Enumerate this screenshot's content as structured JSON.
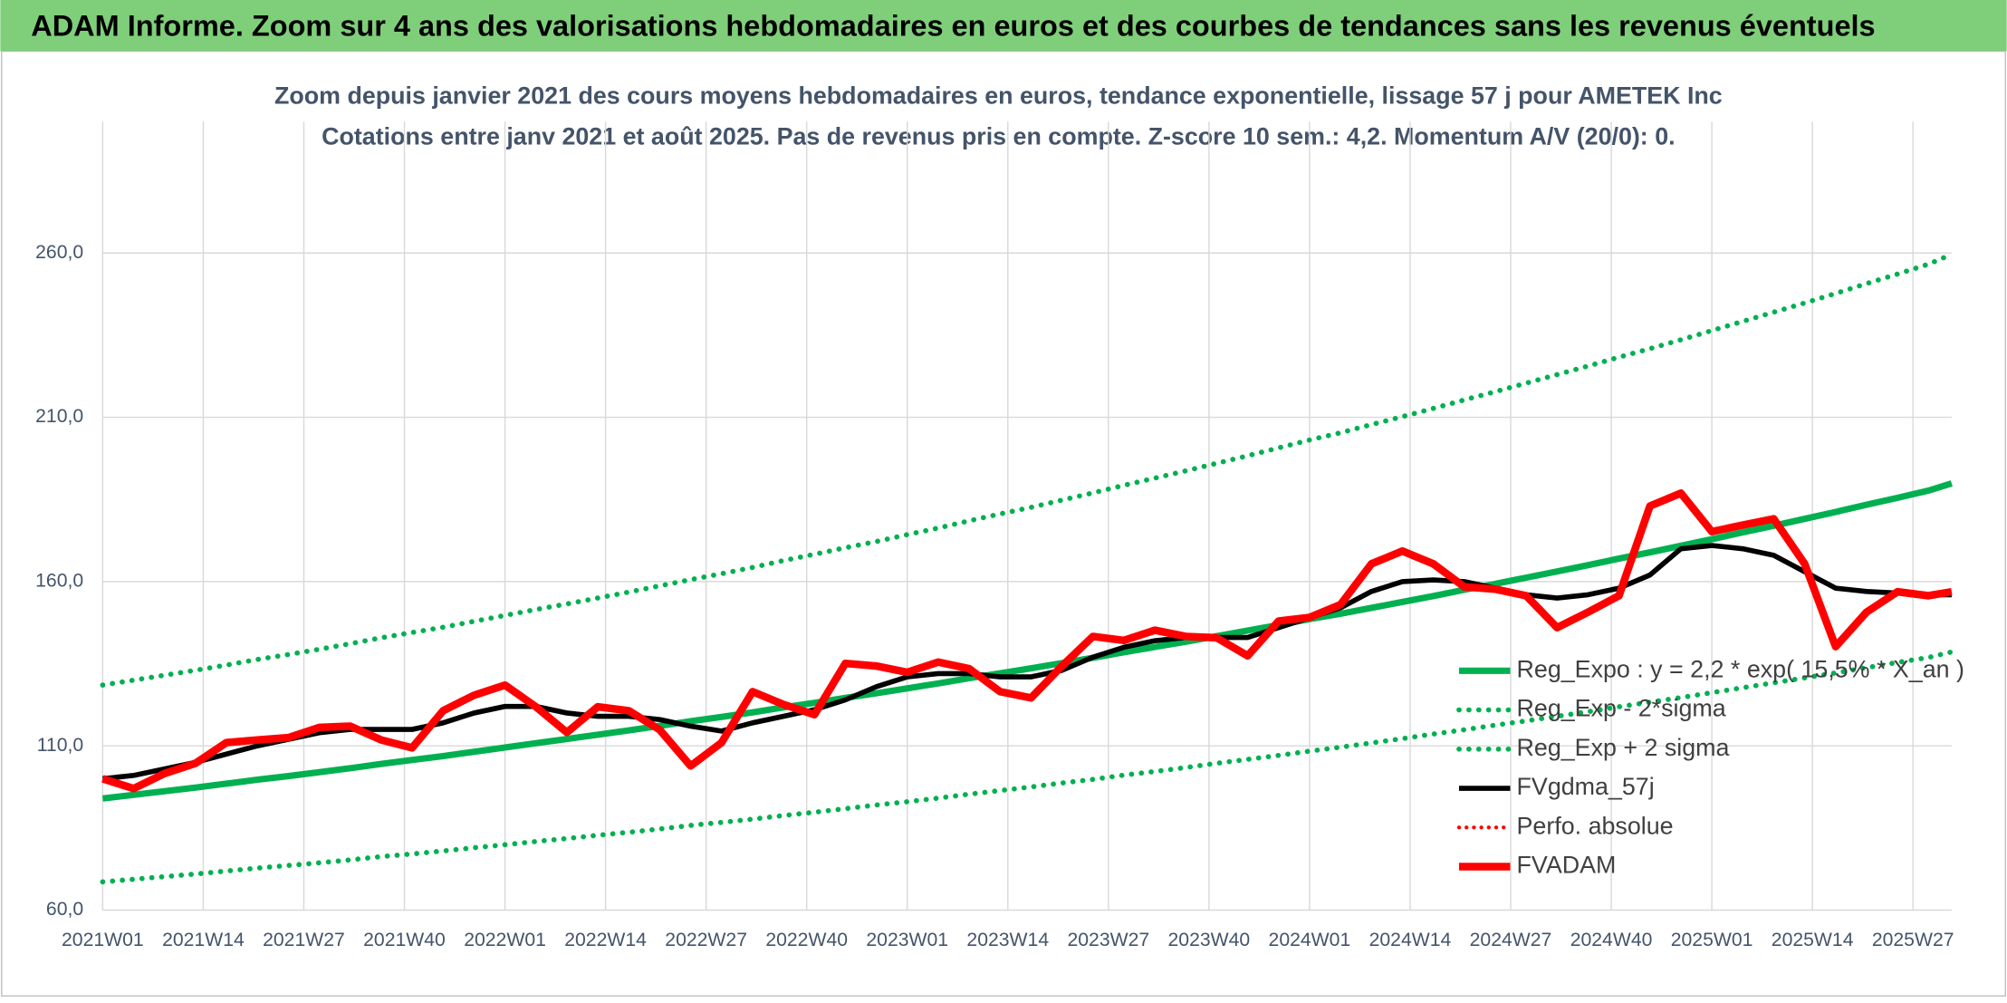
{
  "header": "ADAM Informe. Zoom sur 4 ans des valorisations hebdomadaires en euros et des courbes de tendances sans les revenus éventuels",
  "chart_data": {
    "type": "line",
    "subtitle": [
      "Zoom depuis janvier 2021 des cours moyens hebdomadaires en euros, tendance exponentielle, lissage 57 j pour AMETEK Inc",
      "Cotations entre janv 2021 et août 2025. Pas de revenus pris en compte. Z-score 10 sem.: 4,2. Momentum A/V (20/0): 0."
    ],
    "x": [
      0,
      4,
      8,
      12,
      16,
      20,
      24,
      28,
      32,
      36,
      40,
      44,
      48,
      52,
      56,
      60,
      64,
      68,
      72,
      76,
      80,
      84,
      88,
      92,
      96,
      100,
      104,
      108,
      112,
      116,
      120,
      124,
      128,
      132,
      136,
      140,
      144,
      148,
      152,
      156,
      160,
      164,
      168,
      172,
      176,
      180,
      184,
      188,
      192,
      196,
      200,
      204,
      208,
      212,
      216,
      220,
      224,
      228,
      232,
      236,
      239
    ],
    "xlim": [
      0,
      239
    ],
    "xticks": [
      {
        "value": 0,
        "label": "2021W01"
      },
      {
        "value": 13,
        "label": "2021W14"
      },
      {
        "value": 26,
        "label": "2021W27"
      },
      {
        "value": 39,
        "label": "2021W40"
      },
      {
        "value": 52,
        "label": "2022W01"
      },
      {
        "value": 65,
        "label": "2022W14"
      },
      {
        "value": 78,
        "label": "2022W27"
      },
      {
        "value": 91,
        "label": "2022W40"
      },
      {
        "value": 104,
        "label": "2023W01"
      },
      {
        "value": 117,
        "label": "2023W14"
      },
      {
        "value": 130,
        "label": "2023W27"
      },
      {
        "value": 143,
        "label": "2023W40"
      },
      {
        "value": 156,
        "label": "2024W01"
      },
      {
        "value": 169,
        "label": "2024W14"
      },
      {
        "value": 182,
        "label": "2024W27"
      },
      {
        "value": 195,
        "label": "2024W40"
      },
      {
        "value": 208,
        "label": "2025W01"
      },
      {
        "value": 221,
        "label": "2025W14"
      },
      {
        "value": 234,
        "label": "2025W27"
      }
    ],
    "ylim": [
      60,
      300
    ],
    "yticks": [
      {
        "value": 60,
        "label": "60,0"
      },
      {
        "value": 110,
        "label": "110,0"
      },
      {
        "value": 160,
        "label": "160,0"
      },
      {
        "value": 210,
        "label": "210,0"
      },
      {
        "value": 260,
        "label": "260,0"
      }
    ],
    "grid": true,
    "series": [
      {
        "name": "Reg_Expo : y = 2,2 * exp( 15,5% * X_an )",
        "color": "#00b050",
        "style": "solid",
        "width": 5,
        "values": [
          94.0,
          95.1,
          96.2,
          97.3,
          98.5,
          99.7,
          100.8,
          102.0,
          103.2,
          104.5,
          105.7,
          106.9,
          108.2,
          109.5,
          110.8,
          112.1,
          113.4,
          114.7,
          116.1,
          117.5,
          118.8,
          120.2,
          121.7,
          123.1,
          124.6,
          126.0,
          127.5,
          129.0,
          130.6,
          132.1,
          133.6,
          135.2,
          136.8,
          138.5,
          140.1,
          141.7,
          143.4,
          145.1,
          146.8,
          148.6,
          150.2,
          152.0,
          153.8,
          155.6,
          157.5,
          159.3,
          161.2,
          163.1,
          165.0,
          167.0,
          168.9,
          170.9,
          172.9,
          175.0,
          177.0,
          179.1,
          181.2,
          183.4,
          185.5,
          187.7,
          189.9
        ]
      },
      {
        "name": "Reg_Exp - 2*sigma",
        "color": "#00b050",
        "style": "dotted",
        "width": 4,
        "values": [
          68.6,
          69.4,
          70.2,
          71.0,
          71.9,
          72.8,
          73.6,
          74.4,
          75.3,
          76.3,
          77.1,
          78.0,
          79.0,
          79.9,
          80.9,
          81.8,
          82.8,
          83.7,
          84.7,
          85.8,
          86.7,
          87.7,
          88.8,
          89.8,
          90.9,
          92.0,
          93.0,
          94.1,
          95.3,
          96.4,
          97.5,
          98.7,
          99.8,
          101.1,
          102.2,
          103.4,
          104.7,
          105.9,
          107.1,
          108.4,
          109.6,
          110.9,
          112.2,
          113.6,
          114.9,
          116.3,
          117.6,
          119.0,
          120.4,
          121.9,
          123.3,
          124.7,
          126.2,
          127.7,
          129.2,
          130.7,
          132.2,
          133.8,
          135.4,
          136.9,
          138.6
        ]
      },
      {
        "name": "Reg_Exp + 2 sigma",
        "color": "#00b050",
        "style": "dotted",
        "width": 4,
        "values": [
          128.5,
          130.0,
          131.5,
          133.0,
          134.6,
          136.3,
          137.8,
          139.4,
          141.1,
          142.9,
          144.5,
          146.1,
          147.9,
          149.7,
          151.5,
          153.2,
          155.0,
          156.8,
          158.7,
          160.6,
          162.4,
          164.3,
          166.4,
          168.3,
          170.3,
          172.2,
          174.3,
          176.3,
          178.5,
          180.6,
          182.6,
          184.8,
          187.0,
          189.3,
          191.5,
          193.7,
          196.0,
          198.3,
          200.7,
          203.1,
          205.3,
          207.8,
          210.2,
          212.7,
          215.3,
          217.8,
          220.4,
          223.0,
          225.6,
          228.3,
          230.9,
          233.6,
          236.4,
          239.2,
          242.0,
          244.8,
          247.7,
          250.7,
          253.6,
          256.6,
          259.6
        ]
      },
      {
        "name": "FVgdma_57j",
        "color": "#000000",
        "style": "solid",
        "width": 4,
        "values": [
          100,
          101,
          103,
          105,
          107.5,
          110,
          112,
          114,
          115,
          115,
          115,
          117,
          120,
          122,
          122,
          120,
          119,
          119,
          118,
          116,
          114.5,
          117,
          119,
          121,
          124,
          128,
          131,
          132,
          132,
          131,
          131,
          133,
          137,
          140,
          142,
          143,
          143,
          143,
          146,
          149,
          152,
          157,
          160,
          160.5,
          160,
          158,
          156,
          155,
          156,
          158,
          162,
          170,
          171,
          170,
          168,
          163,
          158,
          157,
          156.5,
          156,
          156
        ]
      },
      {
        "name": "Perfo. absolue",
        "color": "#ff0000",
        "style": "dotted",
        "width": 3
      },
      {
        "name": "FVADAM",
        "color": "#ff0000",
        "style": "solid",
        "width": 6,
        "values": [
          100,
          97,
          101.6,
          104.7,
          111,
          111.8,
          112.5,
          115.6,
          116,
          111.8,
          109.4,
          120.7,
          125.4,
          128.5,
          121.9,
          114.1,
          121.9,
          120.7,
          114.9,
          103.9,
          111,
          126.5,
          122.6,
          119.5,
          135.1,
          134.3,
          132.4,
          135.5,
          133.5,
          126.5,
          124.6,
          134.3,
          143.3,
          142.1,
          145.2,
          143.3,
          142.9,
          137.4,
          148,
          149.1,
          153,
          165.4,
          169.3,
          165.4,
          158.4,
          157.7,
          155.7,
          146,
          150.7,
          155.7,
          183,
          186.9,
          175.2,
          177.2,
          179.1,
          165.4,
          140.2,
          150.7,
          156.9,
          155.7,
          156.9
        ]
      }
    ]
  }
}
